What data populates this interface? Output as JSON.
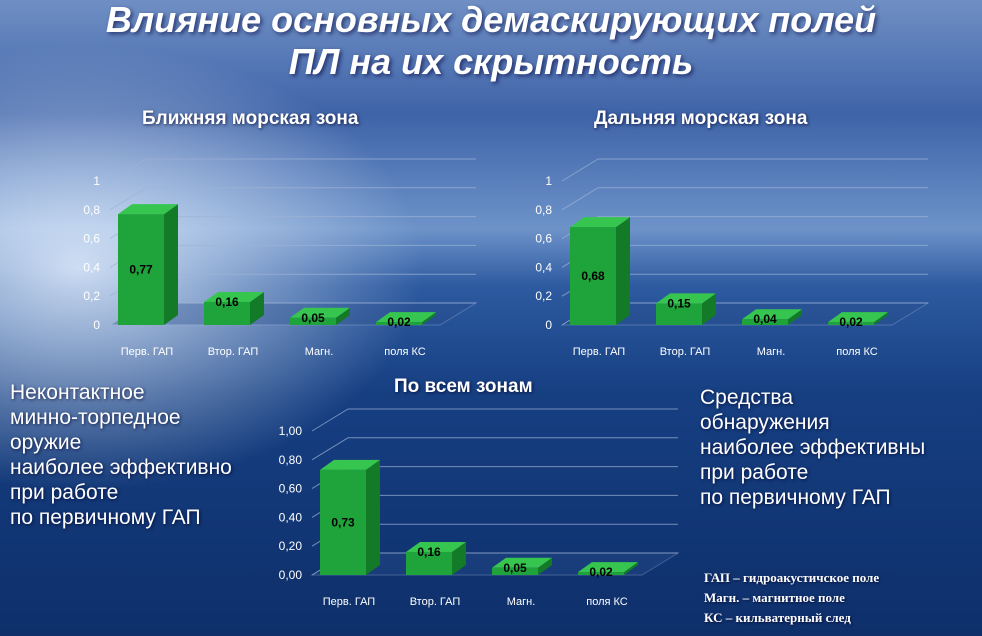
{
  "slide": {
    "title_line1": "Влияние основных демаскирующих полей",
    "title_line2": "ПЛ на их скрытность",
    "left_text": [
      "Неконтактное",
      "минно-торпедное",
      "оружие",
      "наиболее эффективно",
      "при работе",
      "по первичному ГАП"
    ],
    "right_text": [
      "Средства",
      "обнаружения",
      "наиболее эффективны",
      "при работе",
      "по первичному ГАП"
    ],
    "legend": [
      "ГАП – гидроакустичское поле",
      "Магн. – магнитное поле",
      "КС – кильватерный след"
    ],
    "colors": {
      "bar_front": "#1fa33b",
      "bar_top": "#36c64f",
      "bar_side": "#137a27",
      "text": "#ffffff"
    }
  },
  "chart_data": [
    {
      "type": "bar",
      "title": "Ближняя морская зона",
      "categories": [
        "Перв. ГАП",
        "Втор. ГАП",
        "Магн.",
        "поля КС"
      ],
      "values": [
        0.77,
        0.16,
        0.05,
        0.02
      ],
      "value_labels": [
        "0,77",
        "0,16",
        "0,05",
        "0,02"
      ],
      "yticks": [
        "0",
        "0,2",
        "0,4",
        "0,6",
        "0,8",
        "1"
      ],
      "ylim": [
        0,
        1
      ]
    },
    {
      "type": "bar",
      "title": "Дальняя морская зона",
      "categories": [
        "Перв. ГАП",
        "Втор. ГАП",
        "Магн.",
        "поля КС"
      ],
      "values": [
        0.68,
        0.15,
        0.04,
        0.02
      ],
      "value_labels": [
        "0,68",
        "0,15",
        "0,04",
        "0,02"
      ],
      "yticks": [
        "0",
        "0,2",
        "0,4",
        "0,6",
        "0,8",
        "1"
      ],
      "ylim": [
        0,
        1
      ]
    },
    {
      "type": "bar",
      "title": "По всем зонам",
      "categories": [
        "Перв. ГАП",
        "Втор. ГАП",
        "Магн.",
        "поля КС"
      ],
      "values": [
        0.73,
        0.16,
        0.05,
        0.02
      ],
      "value_labels": [
        "0,73",
        "0,16",
        "0,05",
        "0,02"
      ],
      "yticks": [
        "0,00",
        "0,20",
        "0,40",
        "0,60",
        "0,80",
        "1,00"
      ],
      "ylim": [
        0,
        1
      ]
    }
  ]
}
